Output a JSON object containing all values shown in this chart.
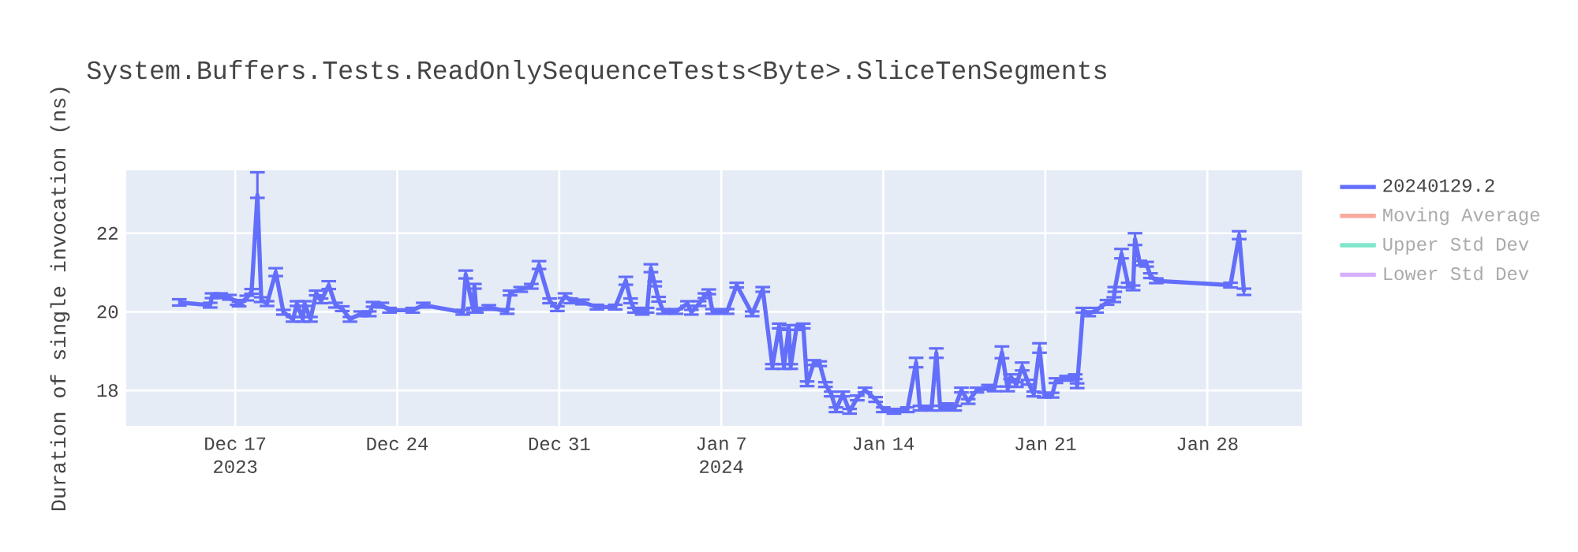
{
  "chart_data": {
    "type": "line",
    "title": "System.Buffers.Tests.ReadOnlySequenceTests<Byte>.SliceTenSegments",
    "ylabel": "Duration of single invocation (ns)",
    "x": [
      "2023-12-14T14:00",
      "2023-12-15T22:00",
      "2023-12-16T00:00",
      "2023-12-16T09:00",
      "2023-12-16T18:00",
      "2023-12-17T02:00",
      "2023-12-17T04:00",
      "2023-12-17T12:00",
      "2023-12-17T17:00",
      "2023-12-17T23:00",
      "2023-12-18T03:00",
      "2023-12-18T09:00",
      "2023-12-18T18:00",
      "2023-12-19T02:00",
      "2023-12-19T12:00",
      "2023-12-19T16:00",
      "2023-12-19T22:00",
      "2023-12-20T00:00",
      "2023-12-20T06:00",
      "2023-12-20T12:00",
      "2023-12-20T17:00",
      "2023-12-21T01:00",
      "2023-12-21T08:00",
      "2023-12-21T15:00",
      "2023-12-21T23:00",
      "2023-12-22T10:00",
      "2023-12-22T19:00",
      "2023-12-22T23:00",
      "2023-12-23T08:00",
      "2023-12-23T16:00",
      "2023-12-24T16:00",
      "2023-12-25T03:00",
      "2023-12-26T20:00",
      "2023-12-26T23:00",
      "2023-12-27T07:00",
      "2023-12-27T08:00",
      "2023-12-27T10:00",
      "2023-12-27T23:00",
      "2023-12-28T18:00",
      "2023-12-28T21:00",
      "2023-12-29T08:00",
      "2023-12-29T19:00",
      "2023-12-30T03:00",
      "2023-12-30T14:00",
      "2023-12-30T22:00",
      "2023-12-31T06:00",
      "2023-12-31T12:00",
      "2024-01-01T00:00",
      "2024-01-01T15:00",
      "2024-01-02T10:00",
      "2024-01-02T21:00",
      "2024-01-03T02:00",
      "2024-01-03T06:00",
      "2024-01-03T14:00",
      "2024-01-03T19:00",
      "2024-01-03T23:00",
      "2024-01-04T03:00",
      "2024-01-04T07:00",
      "2024-01-04T12:00",
      "2024-01-05T01:00",
      "2024-01-05T13:00",
      "2024-01-05T17:00",
      "2024-01-06T01:00",
      "2024-01-06T07:00",
      "2024-01-06T11:00",
      "2024-01-06T15:00",
      "2024-01-07T06:00",
      "2024-01-07T16:00",
      "2024-01-08T08:00",
      "2024-01-08T19:00",
      "2024-01-09T05:00",
      "2024-01-09T12:00",
      "2024-01-09T17:00",
      "2024-01-09T22:00",
      "2024-01-10T00:00",
      "2024-01-10T06:00",
      "2024-01-10T13:00",
      "2024-01-10T17:00",
      "2024-01-11T00:00",
      "2024-01-11T06:00",
      "2024-01-11T12:00",
      "2024-01-11T18:00",
      "2024-01-11T23:00",
      "2024-01-12T06:00",
      "2024-01-12T13:00",
      "2024-01-12T21:00",
      "2024-01-13T05:00",
      "2024-01-13T16:00",
      "2024-01-14T00:00",
      "2024-01-14T11:00",
      "2024-01-15T01:00",
      "2024-01-15T10:00",
      "2024-01-15T14:00",
      "2024-01-16T02:00",
      "2024-01-16T07:00",
      "2024-01-16T11:00",
      "2024-01-16T18:00",
      "2024-01-17T02:00",
      "2024-01-17T09:00",
      "2024-01-17T16:00",
      "2024-01-18T01:00",
      "2024-01-18T13:00",
      "2024-01-18T19:00",
      "2024-01-19T03:00",
      "2024-01-19T09:00",
      "2024-01-19T12:00",
      "2024-01-19T18:00",
      "2024-01-20T00:00",
      "2024-01-20T06:00",
      "2024-01-20T12:00",
      "2024-01-20T18:00",
      "2024-01-20T23:00",
      "2024-01-21T07:00",
      "2024-01-21T11:00",
      "2024-01-21T22:00",
      "2024-01-22T07:00",
      "2024-01-22T09:00",
      "2024-01-22T15:00",
      "2024-01-22T21:00",
      "2024-01-23T05:00",
      "2024-01-23T16:00",
      "2024-01-23T23:00",
      "2024-01-24T00:00",
      "2024-01-24T07:00",
      "2024-01-24T14:00",
      "2024-01-24T19:00",
      "2024-01-24T21:00",
      "2024-01-25T02:00",
      "2024-01-25T09:00",
      "2024-01-25T13:00",
      "2024-01-25T19:00",
      "2024-01-29T00:00",
      "2024-01-29T09:00",
      "2024-01-29T14:00"
    ],
    "series": [
      {
        "name": "20240129.2",
        "color": "#636efa",
        "values": [
          20.24,
          20.17,
          20.41,
          20.41,
          20.37,
          20.24,
          20.2,
          20.35,
          20.52,
          22.97,
          20.31,
          20.21,
          21.01,
          19.99,
          19.81,
          20.21,
          19.81,
          20.21,
          19.81,
          20.48,
          20.28,
          20.68,
          20.17,
          20.08,
          19.81,
          19.95,
          19.95,
          20.19,
          20.17,
          20.04,
          20.04,
          20.17,
          19.99,
          20.95,
          20.04,
          20.65,
          20.04,
          20.11,
          20.01,
          20.48,
          20.57,
          20.65,
          21.19,
          20.28,
          20.08,
          20.41,
          20.28,
          20.25,
          20.12,
          20.12,
          20.79,
          20.28,
          20.04,
          19.99,
          20.04,
          21.11,
          20.71,
          20.32,
          20.01,
          20.01,
          20.21,
          19.99,
          20.21,
          20.41,
          20.51,
          20.01,
          20.01,
          20.68,
          19.95,
          20.57,
          18.61,
          19.64,
          18.61,
          19.6,
          18.61,
          19.6,
          19.64,
          18.17,
          18.71,
          18.68,
          18.15,
          17.91,
          17.51,
          17.91,
          17.47,
          17.81,
          18.01,
          17.77,
          17.51,
          17.47,
          17.51,
          18.71,
          17.55,
          17.55,
          18.95,
          17.55,
          17.61,
          17.55,
          18.01,
          17.72,
          18.01,
          18.08,
          18.04,
          18.97,
          18.04,
          18.35,
          18.15,
          18.61,
          18.21,
          17.91,
          19.08,
          17.88,
          17.88,
          18.25,
          18.31,
          18.35,
          18.12,
          20.04,
          19.95,
          20.04,
          20.24,
          20.31,
          20.57,
          21.48,
          20.68,
          20.61,
          21.85,
          21.24,
          21.21,
          20.92,
          20.79,
          20.68,
          21.95,
          20.51
        ],
        "errors": [
          0.08,
          0.06,
          0.06,
          0.06,
          0.06,
          0.06,
          0.06,
          0.06,
          0.06,
          [
            22.9,
            23.55
          ],
          0.06,
          0.06,
          0.1,
          0.06,
          0.06,
          0.06,
          0.06,
          0.06,
          0.06,
          0.06,
          0.06,
          0.1,
          0.06,
          0.06,
          0.06,
          0.06,
          0.06,
          0.06,
          0.06,
          0.06,
          0.06,
          0.06,
          0.06,
          0.1,
          0.06,
          0.06,
          0.06,
          0.06,
          0.06,
          0.06,
          0.06,
          0.06,
          0.1,
          0.06,
          0.06,
          0.06,
          0.06,
          0.06,
          0.06,
          0.06,
          0.1,
          0.06,
          0.06,
          0.06,
          0.06,
          0.1,
          0.06,
          0.06,
          0.06,
          0.06,
          0.06,
          0.06,
          0.06,
          0.06,
          0.06,
          0.06,
          0.06,
          0.06,
          0.06,
          0.06,
          0.06,
          0.06,
          0.06,
          0.06,
          0.06,
          0.06,
          0.06,
          0.06,
          0.06,
          0.06,
          0.06,
          0.06,
          0.06,
          0.06,
          0.06,
          0.06,
          0.06,
          0.06,
          0.06,
          0.06,
          0.06,
          0.12,
          0.06,
          0.06,
          0.12,
          0.06,
          0.06,
          0.06,
          0.06,
          0.06,
          0.06,
          0.06,
          0.06,
          0.15,
          0.06,
          0.06,
          0.06,
          0.1,
          0.06,
          0.06,
          0.12,
          0.06,
          0.06,
          0.06,
          0.06,
          0.06,
          0.06,
          0.06,
          0.06,
          0.06,
          0.06,
          0.06,
          0.06,
          0.12,
          0.06,
          0.06,
          0.15,
          0.06,
          0.06,
          0.06,
          0.06,
          0.06,
          0.1,
          0.08
        ]
      },
      {
        "name": "Moving Average",
        "color": "#f7aa9d",
        "values": [
          null,
          null,
          null,
          null,
          null,
          null,
          null,
          null,
          null,
          null,
          null,
          null,
          null,
          null,
          null,
          null,
          null,
          null,
          null,
          null,
          null,
          null,
          null,
          null,
          null,
          null,
          null,
          null,
          null,
          null,
          null,
          null,
          null,
          null,
          null,
          null,
          null,
          null,
          null,
          null,
          null,
          null,
          null,
          null,
          null,
          null,
          null,
          null,
          null,
          null,
          null,
          null,
          null,
          null,
          null,
          null,
          null,
          null,
          null,
          null,
          null,
          null,
          null,
          null,
          null,
          null,
          null,
          null,
          null,
          null,
          null,
          null,
          null,
          null,
          null,
          null,
          null,
          null,
          null,
          null,
          null,
          null,
          null,
          null,
          null,
          null,
          null,
          null,
          null,
          null,
          null,
          null,
          null,
          null,
          null,
          null,
          null,
          null,
          null,
          null,
          null,
          null,
          null,
          null,
          null,
          null,
          null,
          null,
          null,
          null,
          null,
          null,
          null,
          null,
          null,
          null,
          null,
          null,
          null,
          null,
          null,
          null,
          null,
          null,
          null,
          null,
          null,
          null,
          null,
          null,
          null,
          null,
          null,
          null
        ]
      },
      {
        "name": "Upper Std Dev",
        "color": "#80e6cb",
        "values": [
          null,
          null,
          null,
          null,
          null,
          null,
          null,
          null,
          null,
          null,
          null,
          null,
          null,
          null,
          null,
          null,
          null,
          null,
          null,
          null,
          null,
          null,
          null,
          null,
          null,
          null,
          null,
          null,
          null,
          null,
          null,
          null,
          null,
          null,
          null,
          null,
          null,
          null,
          null,
          null,
          null,
          null,
          null,
          null,
          null,
          null,
          null,
          null,
          null,
          null,
          null,
          null,
          null,
          null,
          null,
          null,
          null,
          null,
          null,
          null,
          null,
          null,
          null,
          null,
          null,
          null,
          null,
          null,
          null,
          null,
          null,
          null,
          null,
          null,
          null,
          null,
          null,
          null,
          null,
          null,
          null,
          null,
          null,
          null,
          null,
          null,
          null,
          null,
          null,
          null,
          null,
          null,
          null,
          null,
          null,
          null,
          null,
          null,
          null,
          null,
          null,
          null,
          null,
          null,
          null,
          null,
          null,
          null,
          null,
          null,
          null,
          null,
          null,
          null,
          null,
          null,
          null,
          null,
          null,
          null,
          null,
          null,
          null,
          null,
          null,
          null,
          null,
          null,
          null,
          null,
          null,
          null,
          null,
          null
        ]
      },
      {
        "name": "Lower Std Dev",
        "color": "#d5b1fd",
        "values": [
          null,
          null,
          null,
          null,
          null,
          null,
          null,
          null,
          null,
          null,
          null,
          null,
          null,
          null,
          null,
          null,
          null,
          null,
          null,
          null,
          null,
          null,
          null,
          null,
          null,
          null,
          null,
          null,
          null,
          null,
          null,
          null,
          null,
          null,
          null,
          null,
          null,
          null,
          null,
          null,
          null,
          null,
          null,
          null,
          null,
          null,
          null,
          null,
          null,
          null,
          null,
          null,
          null,
          null,
          null,
          null,
          null,
          null,
          null,
          null,
          null,
          null,
          null,
          null,
          null,
          null,
          null,
          null,
          null,
          null,
          null,
          null,
          null,
          null,
          null,
          null,
          null,
          null,
          null,
          null,
          null,
          null,
          null,
          null,
          null,
          null,
          null,
          null,
          null,
          null,
          null,
          null,
          null,
          null,
          null,
          null,
          null,
          null,
          null,
          null,
          null,
          null,
          null,
          null,
          null,
          null,
          null,
          null,
          null,
          null,
          null,
          null,
          null,
          null,
          null,
          null,
          null,
          null,
          null,
          null,
          null,
          null,
          null,
          null,
          null,
          null,
          null,
          null,
          null,
          null,
          null,
          null,
          null,
          null
        ]
      }
    ],
    "xlim": [
      "2023-12-12T07:00",
      "2024-02-01T02:00"
    ],
    "xticks": [
      {
        "value": "2023-12-17",
        "label": "Dec 17 2023"
      },
      {
        "value": "2023-12-24",
        "label": "Dec 24"
      },
      {
        "value": "2023-12-31",
        "label": "Dec 31"
      },
      {
        "value": "2024-01-07",
        "label": "Jan 7 2024"
      },
      {
        "value": "2024-01-14",
        "label": "Jan 14"
      },
      {
        "value": "2024-01-21",
        "label": "Jan 21"
      },
      {
        "value": "2024-01-28",
        "label": "Jan 28"
      }
    ],
    "ylim": [
      17.1,
      23.6
    ],
    "yticks": [
      18,
      20,
      22
    ],
    "grid": true,
    "legend": "right",
    "marker": "none",
    "line_style": "solid"
  }
}
